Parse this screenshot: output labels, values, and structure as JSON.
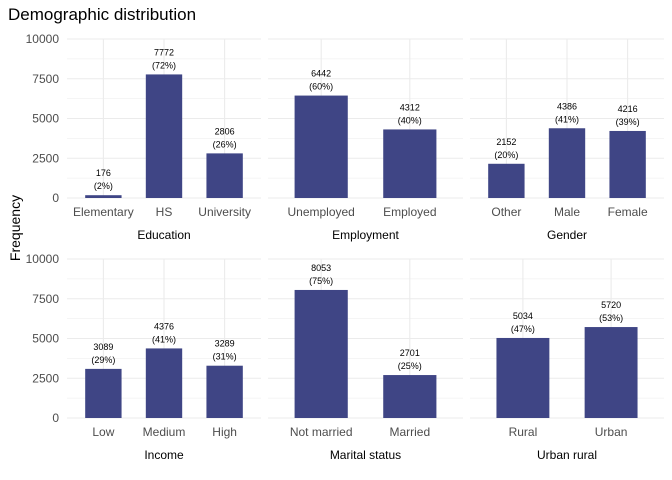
{
  "title": "Demographic distribution",
  "chart_data": {
    "type": "bar",
    "ylabel": "Frequency",
    "ylim": [
      0,
      10000
    ],
    "yticks": [
      0,
      2500,
      5000,
      7500,
      10000
    ],
    "bar_color": "#3f4585",
    "grid_color": "#ebebeb",
    "panels": [
      {
        "xlabel": "Education",
        "categories": [
          "Elementary",
          "HS",
          "University"
        ],
        "values": [
          176,
          7772,
          2806
        ],
        "labels": [
          "176",
          "7772",
          "2806"
        ],
        "pcts": [
          "(2%)",
          "(72%)",
          "(26%)"
        ]
      },
      {
        "xlabel": "Employment",
        "categories": [
          "Unemployed",
          "Employed"
        ],
        "values": [
          6442,
          4312
        ],
        "labels": [
          "6442",
          "4312"
        ],
        "pcts": [
          "(60%)",
          "(40%)"
        ]
      },
      {
        "xlabel": "Gender",
        "categories": [
          "Other",
          "Male",
          "Female"
        ],
        "values": [
          2152,
          4386,
          4216
        ],
        "labels": [
          "2152",
          "4386",
          "4216"
        ],
        "pcts": [
          "(20%)",
          "(41%)",
          "(39%)"
        ]
      },
      {
        "xlabel": "Income",
        "categories": [
          "Low",
          "Medium",
          "High"
        ],
        "values": [
          3089,
          4376,
          3289
        ],
        "labels": [
          "3089",
          "4376",
          "3289"
        ],
        "pcts": [
          "(29%)",
          "(41%)",
          "(31%)"
        ]
      },
      {
        "xlabel": "Marital status",
        "categories": [
          "Not married",
          "Married"
        ],
        "values": [
          8053,
          2701
        ],
        "labels": [
          "8053",
          "2701"
        ],
        "pcts": [
          "(75%)",
          "(25%)"
        ]
      },
      {
        "xlabel": "Urban rural",
        "categories": [
          "Rural",
          "Urban"
        ],
        "values": [
          5034,
          5720
        ],
        "labels": [
          "5034",
          "5720"
        ],
        "pcts": [
          "(47%)",
          "(53%)"
        ]
      }
    ]
  }
}
